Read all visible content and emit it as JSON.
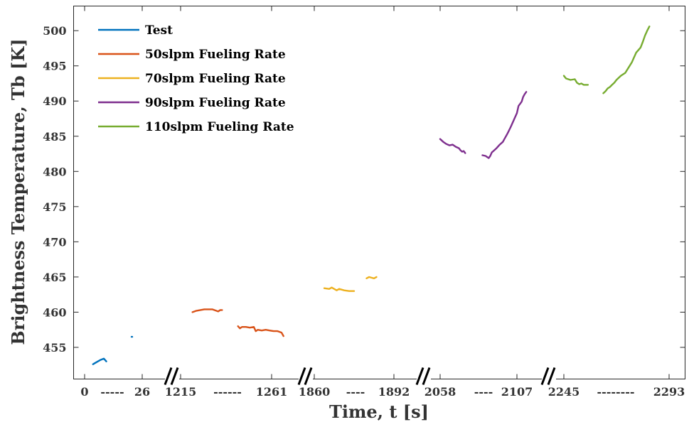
{
  "chart_data": {
    "type": "line",
    "xlabel": "Time, t [s]",
    "ylabel": "Brightness Temperature, Tb [K]",
    "ylim": [
      450.5,
      503.5
    ],
    "yticks": [
      455,
      460,
      465,
      470,
      475,
      480,
      485,
      490,
      495,
      500
    ],
    "x_axis_segments": [
      "0 ----- 26",
      "1215 ------ 1261",
      "1860 ---- 1892",
      "2058 ---- 2107",
      "2245 -------- 2293"
    ],
    "x_tick_labels": [
      "0",
      "-----",
      "26",
      "1215",
      "------",
      "1261",
      "1860",
      "----",
      "1892",
      "2058",
      "----",
      "2107",
      "2245",
      "--------",
      "2293"
    ],
    "x_axis_breaks": 4,
    "grid": false,
    "legend_position": "top-left",
    "colors": {
      "Test": "#0072BD",
      "50slpm Fueling Rate": "#D95319",
      "70slpm Fueling Rate": "#EDB120",
      "90slpm Fueling Rate": "#7E2F8E",
      "110slpm Fueling Rate": "#77AC30"
    },
    "series": [
      {
        "name": "Test",
        "segments": [
          [
            [
              3.5,
              452.6
            ],
            [
              5,
              452.9
            ],
            [
              6.5,
              453.2
            ],
            [
              8,
              453.4
            ],
            [
              9,
              453.0
            ]
          ],
          [
            [
              19.5,
              456.5
            ],
            [
              19.8,
              456.5
            ]
          ]
        ]
      },
      {
        "name": "50slpm Fueling Rate",
        "segments": [
          [
            [
              1221,
              460.0
            ],
            [
              1223,
              460.2
            ],
            [
              1225,
              460.3
            ],
            [
              1227,
              460.4
            ],
            [
              1229,
              460.4
            ],
            [
              1231,
              460.4
            ],
            [
              1233,
              460.2
            ],
            [
              1234,
              460.1
            ],
            [
              1235,
              460.3
            ],
            [
              1236,
              460.3
            ]
          ],
          [
            [
              1244,
              458.0
            ],
            [
              1245,
              457.7
            ],
            [
              1246,
              457.9
            ],
            [
              1248,
              457.9
            ],
            [
              1250,
              457.8
            ],
            [
              1252,
              457.9
            ],
            [
              1253,
              457.3
            ],
            [
              1254,
              457.5
            ],
            [
              1256,
              457.4
            ],
            [
              1258,
              457.5
            ],
            [
              1260,
              457.4
            ],
            [
              1262,
              457.3
            ],
            [
              1264,
              457.3
            ],
            [
              1266,
              457.1
            ],
            [
              1267,
              456.6
            ]
          ]
        ]
      },
      {
        "name": "70slpm Fueling Rate",
        "segments": [
          [
            [
              1864,
              463.4
            ],
            [
              1866,
              463.3
            ],
            [
              1867,
              463.5
            ],
            [
              1869,
              463.1
            ],
            [
              1870,
              463.3
            ],
            [
              1872,
              463.1
            ],
            [
              1874,
              463.0
            ],
            [
              1876,
              463.0
            ]
          ],
          [
            [
              1881,
              464.8
            ],
            [
              1882,
              465.0
            ],
            [
              1883,
              464.9
            ],
            [
              1884,
              464.8
            ],
            [
              1885,
              465.0
            ]
          ]
        ]
      },
      {
        "name": "90slpm Fueling Rate",
        "segments": [
          [
            [
              2058,
              484.6
            ],
            [
              2060,
              484.2
            ],
            [
              2062,
              483.9
            ],
            [
              2064,
              483.7
            ],
            [
              2066,
              483.8
            ],
            [
              2068,
              483.5
            ],
            [
              2070,
              483.3
            ],
            [
              2071,
              483.0
            ],
            [
              2072,
              482.8
            ],
            [
              2073,
              482.9
            ],
            [
              2074,
              482.6
            ]
          ],
          [
            [
              2085,
              482.3
            ],
            [
              2087,
              482.2
            ],
            [
              2089,
              481.9
            ],
            [
              2090,
              482.2
            ],
            [
              2091,
              482.7
            ],
            [
              2092,
              482.9
            ],
            [
              2094,
              483.3
            ],
            [
              2096,
              483.8
            ],
            [
              2098,
              484.2
            ],
            [
              2099,
              484.6
            ],
            [
              2101,
              485.4
            ],
            [
              2103,
              486.3
            ],
            [
              2105,
              487.3
            ],
            [
              2107,
              488.3
            ],
            [
              2108,
              489.3
            ],
            [
              2110,
              489.9
            ],
            [
              2111,
              490.6
            ],
            [
              2112,
              491.0
            ],
            [
              2113,
              491.3
            ]
          ]
        ]
      },
      {
        "name": "110slpm Fueling Rate",
        "segments": [
          [
            [
              2245,
              493.6
            ],
            [
              2246,
              493.2
            ],
            [
              2248,
              493.0
            ],
            [
              2250,
              493.1
            ],
            [
              2251,
              492.6
            ],
            [
              2252,
              492.4
            ],
            [
              2253,
              492.5
            ],
            [
              2254,
              492.3
            ],
            [
              2256,
              492.3
            ]
          ],
          [
            [
              2263,
              491.1
            ],
            [
              2264,
              491.4
            ],
            [
              2265,
              491.8
            ],
            [
              2266,
              492.0
            ],
            [
              2267,
              492.3
            ],
            [
              2268,
              492.6
            ],
            [
              2269,
              493.0
            ],
            [
              2270,
              493.3
            ],
            [
              2271,
              493.6
            ],
            [
              2273,
              494.0
            ],
            [
              2274,
              494.5
            ],
            [
              2276,
              495.5
            ],
            [
              2277,
              496.2
            ],
            [
              2278,
              496.9
            ],
            [
              2280,
              497.6
            ],
            [
              2281,
              498.4
            ],
            [
              2282,
              499.3
            ],
            [
              2283,
              500.0
            ],
            [
              2284,
              500.6
            ]
          ]
        ]
      }
    ]
  }
}
